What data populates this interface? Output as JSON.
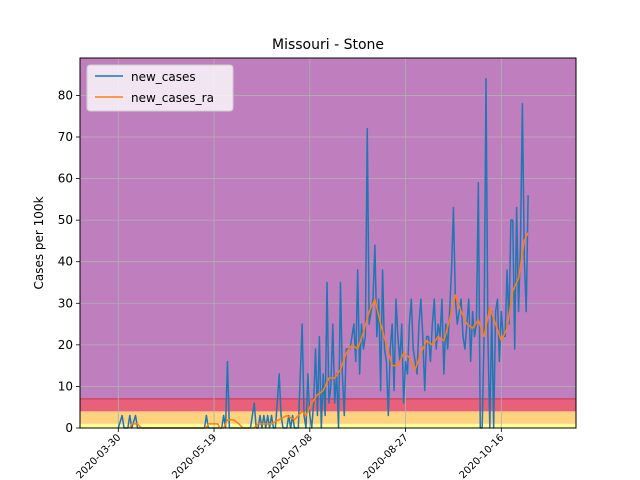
{
  "chart_data": {
    "type": "line",
    "title": "Missouri - Stone",
    "xlabel": "",
    "ylabel": "Cases per 100k",
    "x_range": [
      "2020-03-10",
      "2020-11-24"
    ],
    "ylim": [
      0,
      89
    ],
    "grid": true,
    "legend_position": "top-left",
    "x_ticks": [
      "2020-03-30",
      "2020-05-19",
      "2020-07-08",
      "2020-08-27",
      "2020-10-16"
    ],
    "y_ticks": [
      "0",
      "10",
      "20",
      "30",
      "40",
      "50",
      "60",
      "70",
      "80"
    ],
    "bands": [
      {
        "from": 0,
        "to": 1,
        "color": "#ffff99"
      },
      {
        "from": 1,
        "to": 4,
        "color": "#ffd27f"
      },
      {
        "from": 4,
        "to": 7,
        "color": "#e8607a"
      },
      {
        "from": 7,
        "to": 89,
        "color": "#bf7fbf"
      }
    ],
    "series": [
      {
        "name": "new_cases",
        "color": "#1f77b4",
        "points": [
          [
            "2020-03-30",
            0
          ],
          [
            "2020-04-01",
            3
          ],
          [
            "2020-04-02",
            0
          ],
          [
            "2020-04-04",
            0
          ],
          [
            "2020-04-05",
            3
          ],
          [
            "2020-04-06",
            0
          ],
          [
            "2020-04-08",
            3
          ],
          [
            "2020-04-09",
            0
          ],
          [
            "2020-05-14",
            0
          ],
          [
            "2020-05-15",
            3
          ],
          [
            "2020-05-16",
            0
          ],
          [
            "2020-05-23",
            0
          ],
          [
            "2020-05-24",
            3
          ],
          [
            "2020-05-25",
            0
          ],
          [
            "2020-05-26",
            16
          ],
          [
            "2020-05-27",
            0
          ],
          [
            "2020-06-07",
            0
          ],
          [
            "2020-06-08",
            3
          ],
          [
            "2020-06-09",
            6
          ],
          [
            "2020-06-10",
            0
          ],
          [
            "2020-06-11",
            0
          ],
          [
            "2020-06-12",
            3
          ],
          [
            "2020-06-13",
            0
          ],
          [
            "2020-06-14",
            3
          ],
          [
            "2020-06-15",
            0
          ],
          [
            "2020-06-16",
            3
          ],
          [
            "2020-06-17",
            0
          ],
          [
            "2020-06-18",
            3
          ],
          [
            "2020-06-19",
            0
          ],
          [
            "2020-06-20",
            0
          ],
          [
            "2020-06-21",
            6
          ],
          [
            "2020-06-22",
            13
          ],
          [
            "2020-06-23",
            3
          ],
          [
            "2020-06-24",
            0
          ],
          [
            "2020-06-26",
            0
          ],
          [
            "2020-06-27",
            3
          ],
          [
            "2020-06-28",
            0
          ],
          [
            "2020-06-29",
            3
          ],
          [
            "2020-06-30",
            0
          ],
          [
            "2020-07-02",
            0
          ],
          [
            "2020-07-04",
            25
          ],
          [
            "2020-07-05",
            3
          ],
          [
            "2020-07-06",
            0
          ],
          [
            "2020-07-07",
            13
          ],
          [
            "2020-07-08",
            3
          ],
          [
            "2020-07-09",
            0
          ],
          [
            "2020-07-10",
            6
          ],
          [
            "2020-07-11",
            19
          ],
          [
            "2020-07-12",
            3
          ],
          [
            "2020-07-13",
            22
          ],
          [
            "2020-07-14",
            0
          ],
          [
            "2020-07-15",
            13
          ],
          [
            "2020-07-16",
            3
          ],
          [
            "2020-07-17",
            35
          ],
          [
            "2020-07-18",
            6
          ],
          [
            "2020-07-19",
            10
          ],
          [
            "2020-07-20",
            25
          ],
          [
            "2020-07-21",
            6
          ],
          [
            "2020-07-22",
            13
          ],
          [
            "2020-07-23",
            0
          ],
          [
            "2020-07-24",
            35
          ],
          [
            "2020-07-25",
            13
          ],
          [
            "2020-07-26",
            3
          ],
          [
            "2020-07-27",
            19
          ],
          [
            "2020-07-28",
            19
          ],
          [
            "2020-07-29",
            19
          ],
          [
            "2020-07-30",
            22
          ],
          [
            "2020-07-31",
            25
          ],
          [
            "2020-08-01",
            16
          ],
          [
            "2020-08-02",
            38
          ],
          [
            "2020-08-03",
            13
          ],
          [
            "2020-08-04",
            25
          ],
          [
            "2020-08-05",
            19
          ],
          [
            "2020-08-06",
            22
          ],
          [
            "2020-08-07",
            72
          ],
          [
            "2020-08-08",
            25
          ],
          [
            "2020-08-09",
            28
          ],
          [
            "2020-08-10",
            31
          ],
          [
            "2020-08-11",
            44
          ],
          [
            "2020-08-12",
            22
          ],
          [
            "2020-08-13",
            31
          ],
          [
            "2020-08-14",
            9
          ],
          [
            "2020-08-15",
            38
          ],
          [
            "2020-08-16",
            19
          ],
          [
            "2020-08-17",
            16
          ],
          [
            "2020-08-18",
            3
          ],
          [
            "2020-08-19",
            19
          ],
          [
            "2020-08-20",
            25
          ],
          [
            "2020-08-21",
            9
          ],
          [
            "2020-08-22",
            31
          ],
          [
            "2020-08-23",
            22
          ],
          [
            "2020-08-24",
            16
          ],
          [
            "2020-08-25",
            25
          ],
          [
            "2020-08-26",
            6
          ],
          [
            "2020-08-27",
            16
          ],
          [
            "2020-08-28",
            13
          ],
          [
            "2020-08-29",
            25
          ],
          [
            "2020-08-30",
            31
          ],
          [
            "2020-08-31",
            19
          ],
          [
            "2020-09-01",
            16
          ],
          [
            "2020-09-02",
            13
          ],
          [
            "2020-09-03",
            25
          ],
          [
            "2020-09-04",
            31
          ],
          [
            "2020-09-05",
            22
          ],
          [
            "2020-09-06",
            9
          ],
          [
            "2020-09-07",
            22
          ],
          [
            "2020-09-08",
            22
          ],
          [
            "2020-09-09",
            16
          ],
          [
            "2020-09-10",
            25
          ],
          [
            "2020-09-11",
            31
          ],
          [
            "2020-09-12",
            19
          ],
          [
            "2020-09-13",
            25
          ],
          [
            "2020-09-14",
            22
          ],
          [
            "2020-09-15",
            31
          ],
          [
            "2020-09-16",
            13
          ],
          [
            "2020-09-17",
            25
          ],
          [
            "2020-09-18",
            19
          ],
          [
            "2020-09-19",
            28
          ],
          [
            "2020-09-20",
            38
          ],
          [
            "2020-09-21",
            53
          ],
          [
            "2020-09-22",
            31
          ],
          [
            "2020-09-23",
            25
          ],
          [
            "2020-09-24",
            28
          ],
          [
            "2020-09-25",
            31
          ],
          [
            "2020-09-26",
            22
          ],
          [
            "2020-09-27",
            19
          ],
          [
            "2020-09-28",
            25
          ],
          [
            "2020-09-29",
            31
          ],
          [
            "2020-09-30",
            16
          ],
          [
            "2020-10-01",
            28
          ],
          [
            "2020-10-02",
            22
          ],
          [
            "2020-10-03",
            25
          ],
          [
            "2020-10-04",
            59
          ],
          [
            "2020-10-05",
            0
          ],
          [
            "2020-10-06",
            0
          ],
          [
            "2020-10-07",
            22
          ],
          [
            "2020-10-08",
            84
          ],
          [
            "2020-10-09",
            22
          ],
          [
            "2020-10-10",
            0
          ],
          [
            "2020-10-11",
            28
          ],
          [
            "2020-10-12",
            0
          ],
          [
            "2020-10-13",
            28
          ],
          [
            "2020-10-14",
            31
          ],
          [
            "2020-10-15",
            16
          ],
          [
            "2020-10-16",
            28
          ],
          [
            "2020-10-17",
            22
          ],
          [
            "2020-10-18",
            22
          ],
          [
            "2020-10-19",
            38
          ],
          [
            "2020-10-20",
            25
          ],
          [
            "2020-10-21",
            50
          ],
          [
            "2020-10-22",
            50
          ],
          [
            "2020-10-23",
            19
          ],
          [
            "2020-10-24",
            53
          ],
          [
            "2020-10-25",
            28
          ],
          [
            "2020-10-26",
            44
          ],
          [
            "2020-10-27",
            78
          ],
          [
            "2020-10-28",
            41
          ],
          [
            "2020-10-29",
            28
          ],
          [
            "2020-10-30",
            56
          ]
        ]
      },
      {
        "name": "new_cases_ra",
        "color": "#ff7f0e",
        "points": [
          [
            "2020-04-05",
            0
          ],
          [
            "2020-04-06",
            1
          ],
          [
            "2020-04-07",
            1
          ],
          [
            "2020-04-09",
            1
          ],
          [
            "2020-04-11",
            0
          ],
          [
            "2020-05-15",
            0
          ],
          [
            "2020-05-16",
            1
          ],
          [
            "2020-05-21",
            1
          ],
          [
            "2020-05-22",
            0
          ],
          [
            "2020-05-24",
            0
          ],
          [
            "2020-05-26",
            2
          ],
          [
            "2020-05-29",
            2
          ],
          [
            "2020-06-01",
            1
          ],
          [
            "2020-06-03",
            0
          ],
          [
            "2020-06-09",
            0
          ],
          [
            "2020-06-11",
            1
          ],
          [
            "2020-06-14",
            1
          ],
          [
            "2020-06-18",
            1
          ],
          [
            "2020-06-22",
            2
          ],
          [
            "2020-06-26",
            3
          ],
          [
            "2020-06-30",
            2
          ],
          [
            "2020-07-04",
            4
          ],
          [
            "2020-07-06",
            3
          ],
          [
            "2020-07-09",
            6
          ],
          [
            "2020-07-12",
            8
          ],
          [
            "2020-07-15",
            9
          ],
          [
            "2020-07-18",
            12
          ],
          [
            "2020-07-21",
            12
          ],
          [
            "2020-07-24",
            14
          ],
          [
            "2020-07-27",
            18
          ],
          [
            "2020-07-30",
            20
          ],
          [
            "2020-08-02",
            19
          ],
          [
            "2020-08-05",
            23
          ],
          [
            "2020-08-08",
            28
          ],
          [
            "2020-08-11",
            31
          ],
          [
            "2020-08-14",
            25
          ],
          [
            "2020-08-17",
            20
          ],
          [
            "2020-08-20",
            15
          ],
          [
            "2020-08-23",
            15
          ],
          [
            "2020-08-26",
            18
          ],
          [
            "2020-08-29",
            17
          ],
          [
            "2020-09-01",
            14
          ],
          [
            "2020-09-04",
            18
          ],
          [
            "2020-09-07",
            21
          ],
          [
            "2020-09-10",
            20
          ],
          [
            "2020-09-13",
            22
          ],
          [
            "2020-09-16",
            21
          ],
          [
            "2020-09-19",
            26
          ],
          [
            "2020-09-22",
            32
          ],
          [
            "2020-09-25",
            28
          ],
          [
            "2020-09-28",
            25
          ],
          [
            "2020-10-01",
            24
          ],
          [
            "2020-10-04",
            26
          ],
          [
            "2020-10-07",
            22
          ],
          [
            "2020-10-10",
            29
          ],
          [
            "2020-10-13",
            25
          ],
          [
            "2020-10-16",
            21
          ],
          [
            "2020-10-19",
            24
          ],
          [
            "2020-10-22",
            33
          ],
          [
            "2020-10-25",
            36
          ],
          [
            "2020-10-28",
            45
          ],
          [
            "2020-10-30",
            47
          ]
        ]
      }
    ]
  }
}
